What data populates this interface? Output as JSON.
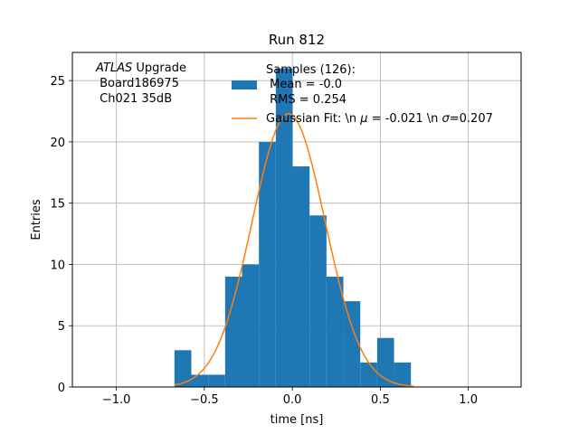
{
  "chart_data": {
    "type": "histogram",
    "title": "Run 812",
    "xlabel": "time [ns]",
    "ylabel": "Entries",
    "xlim": [
      -1.25,
      1.3
    ],
    "ylim": [
      0,
      27.3
    ],
    "xticks": [
      -1.0,
      -0.5,
      0.0,
      0.5,
      1.0
    ],
    "xtick_labels": [
      "−1.0",
      "−0.5",
      "0.0",
      "0.5",
      "1.0"
    ],
    "yticks": [
      0,
      5,
      10,
      15,
      20,
      25
    ],
    "ytick_labels": [
      "0",
      "5",
      "10",
      "15",
      "20",
      "25"
    ],
    "grid": true,
    "legend_position": "upper-right",
    "bins": {
      "edges": [
        -0.67,
        -0.574,
        -0.478,
        -0.382,
        -0.286,
        -0.19,
        -0.094,
        0.002,
        0.098,
        0.194,
        0.29,
        0.386,
        0.482,
        0.578,
        0.674
      ],
      "counts": [
        3,
        1,
        1,
        9,
        10,
        20,
        26,
        18,
        14,
        9,
        7,
        2,
        4,
        2
      ]
    },
    "fit": {
      "mu": -0.021,
      "sigma": 0.207,
      "amplitude": 22.3,
      "x_range": [
        -0.67,
        0.69
      ]
    },
    "colors": {
      "histogram": "#1f77b4",
      "fit": "#ff7f0e",
      "grid": "#b0b0b0"
    },
    "legend": {
      "samples_label": "Samples (126):",
      "samples_mean": " Mean = -0.0",
      "samples_rms": " RMS = 0.254",
      "fit_prefix": "Gaussian Fit: \\n ",
      "fit_mu_symbol": "μ",
      "fit_mu_value": " = -0.021 \\n ",
      "fit_sigma_symbol": "σ",
      "fit_sigma_value": "=0.207"
    },
    "annotation": {
      "line1_italic": "ATLAS",
      "line1_rest": " Upgrade",
      "line2": " Board186975",
      "line3": " Ch021 35dB"
    }
  }
}
